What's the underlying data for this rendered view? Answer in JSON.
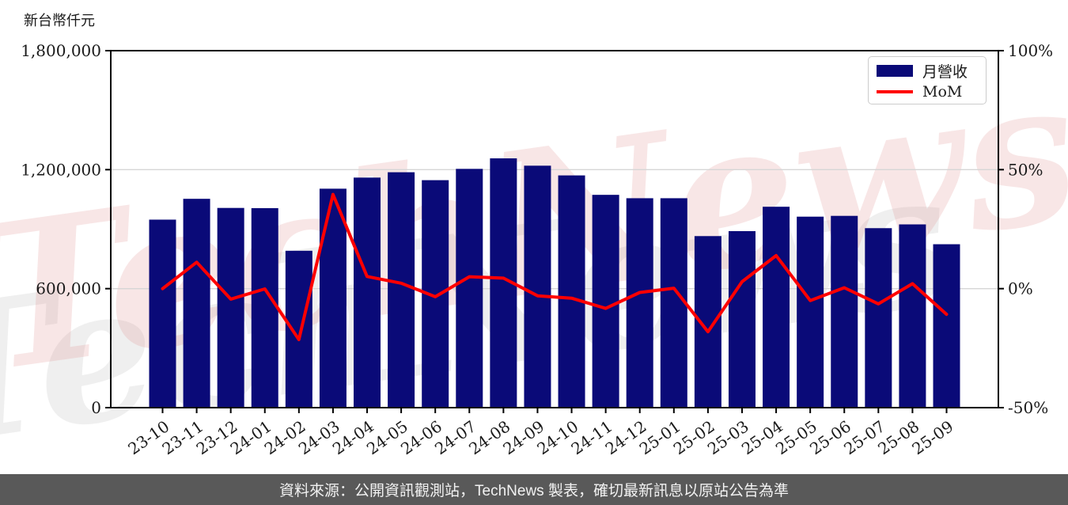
{
  "unit_label": "新台幣仟元",
  "watermark": "TechNews",
  "legend": {
    "bar_label": "月營收",
    "line_label": "MoM"
  },
  "footer": {
    "text": "資料來源：公開資訊觀測站，TechNews 製表，確切最新訊息以原站公告為準"
  },
  "colors": {
    "bar": "#0a0a78",
    "line": "#ff0000",
    "grid": "#d6d6d6",
    "axis": "#000000",
    "tick_label": "#1a1a1a",
    "footer_bg": "#595959",
    "footer_text": "#f2f2f2",
    "watermark_pink": "rgba(224,142,142,0.22)",
    "watermark_gray": "rgba(130,130,130,0.13)"
  },
  "chart_data": {
    "type": "bar",
    "title": "",
    "categories": [
      "23-10",
      "23-11",
      "23-12",
      "24-01",
      "24-02",
      "24-03",
      "24-04",
      "24-05",
      "24-06",
      "24-07",
      "24-08",
      "24-09",
      "24-10",
      "24-11",
      "24-12",
      "25-01",
      "25-02",
      "25-03",
      "25-04",
      "25-05",
      "25-06",
      "25-07",
      "25-08",
      "25-09"
    ],
    "series": [
      {
        "name": "月營收",
        "type": "bar",
        "axis": "left",
        "values": [
          948000,
          1053000,
          1007000,
          1006000,
          791000,
          1104000,
          1160000,
          1187000,
          1147000,
          1204000,
          1257000,
          1220000,
          1171000,
          1073000,
          1056000,
          1056000,
          865000,
          890000,
          1013000,
          963000,
          967000,
          905000,
          924000,
          824000
        ]
      },
      {
        "name": "MoM",
        "type": "line",
        "axis": "right",
        "values": [
          0.0,
          11.1,
          -4.4,
          -0.1,
          -21.4,
          39.6,
          5.1,
          2.3,
          -3.4,
          5.0,
          4.4,
          -3.0,
          -4.0,
          -8.3,
          -1.6,
          0.2,
          -18.1,
          2.9,
          13.9,
          -5.0,
          0.4,
          -6.4,
          2.1,
          -10.8
        ]
      }
    ],
    "ylabel_left": "新台幣仟元",
    "ylim_left": [
      0,
      1800000
    ],
    "yticks_left": [
      [
        0,
        "0"
      ],
      [
        600000,
        "600,000"
      ],
      [
        1200000,
        "1,200,000"
      ],
      [
        1800000,
        "1,800,000"
      ]
    ],
    "ylim_right": [
      -50,
      100
    ],
    "yticks_right": [
      [
        -50,
        "-50%"
      ],
      [
        0,
        "0%"
      ],
      [
        50,
        "50%"
      ],
      [
        100,
        "100%"
      ]
    ],
    "grid": "horizontal-inner",
    "legend_position": "top-right",
    "xtick_rotation": -35
  }
}
